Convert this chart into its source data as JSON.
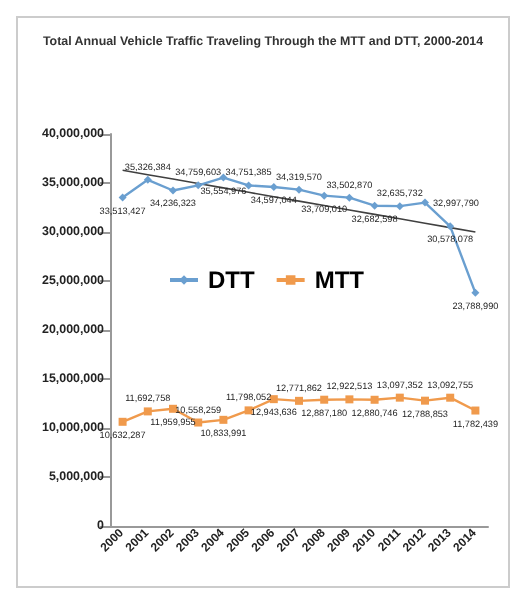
{
  "chart_data": {
    "type": "line",
    "title": "Total Annual Vehicle Traffic Traveling Through the MTT and DTT, 2000-2014",
    "categories": [
      "2000",
      "2001",
      "2002",
      "2003",
      "2004",
      "2005",
      "2006",
      "2007",
      "2008",
      "2009",
      "2010",
      "2011",
      "2012",
      "2013",
      "2014"
    ],
    "series": [
      {
        "name": "DTT",
        "color": "#6a9fd0",
        "marker": "diamond",
        "values": [
          33513427,
          35326384,
          34236323,
          34759603,
          35554976,
          34751385,
          34597044,
          34319570,
          33709010,
          33502870,
          32682598,
          32635732,
          32997790,
          30578078,
          23788990
        ],
        "value_labels": [
          "33,513,427",
          "35,326,384",
          "34,236,323",
          "34,759,603",
          "35,554,976",
          "34,751,385",
          "34,597,044",
          "34,319,570",
          "33,709,010",
          "33,502,870",
          "32,682,598",
          "32,635,732",
          "32,997,790",
          "30,578,078",
          "23,788,990"
        ]
      },
      {
        "name": "MTT",
        "color": "#f09a4c",
        "marker": "square",
        "values": [
          10632287,
          11692758,
          11959955,
          10558259,
          10833991,
          11798052,
          12943636,
          12771862,
          12887180,
          12922513,
          12880746,
          13097352,
          12788853,
          13092755,
          11782439
        ],
        "value_labels": [
          "10,632,287",
          "11,692,758",
          "11,959,955",
          "10,558,259",
          "10,833,991",
          "11,798,052",
          "12,943,636",
          "12,771,862",
          "12,887,180",
          "12,922,513",
          "12,880,746",
          "13,097,352",
          "12,788,853",
          "13,092,755",
          "11,782,439"
        ]
      },
      {
        "type": "line",
        "color": "#404040",
        "marker": "none",
        "values": [
          36300000,
          35850000,
          35400000,
          34950000,
          34500000,
          34050000,
          33600000,
          33150000,
          32700000,
          32250000,
          31800000,
          31350000,
          30900000,
          30450000,
          30000000
        ]
      }
    ],
    "ylim": [
      0,
      40000000
    ],
    "yticks": [
      {
        "value": 0,
        "label": "0"
      },
      {
        "value": 5000000,
        "label": "5,000,000"
      },
      {
        "value": 10000000,
        "label": "10,000,000"
      },
      {
        "value": 15000000,
        "label": "15,000,000"
      },
      {
        "value": 20000000,
        "label": "20,000,000"
      },
      {
        "value": 25000000,
        "label": "25,000,000"
      },
      {
        "value": 30000000,
        "label": "30,000,000"
      },
      {
        "value": 35000000,
        "label": "35,000,000"
      },
      {
        "value": 40000000,
        "label": "40,000,000"
      }
    ],
    "legend": "left",
    "grid": false
  }
}
